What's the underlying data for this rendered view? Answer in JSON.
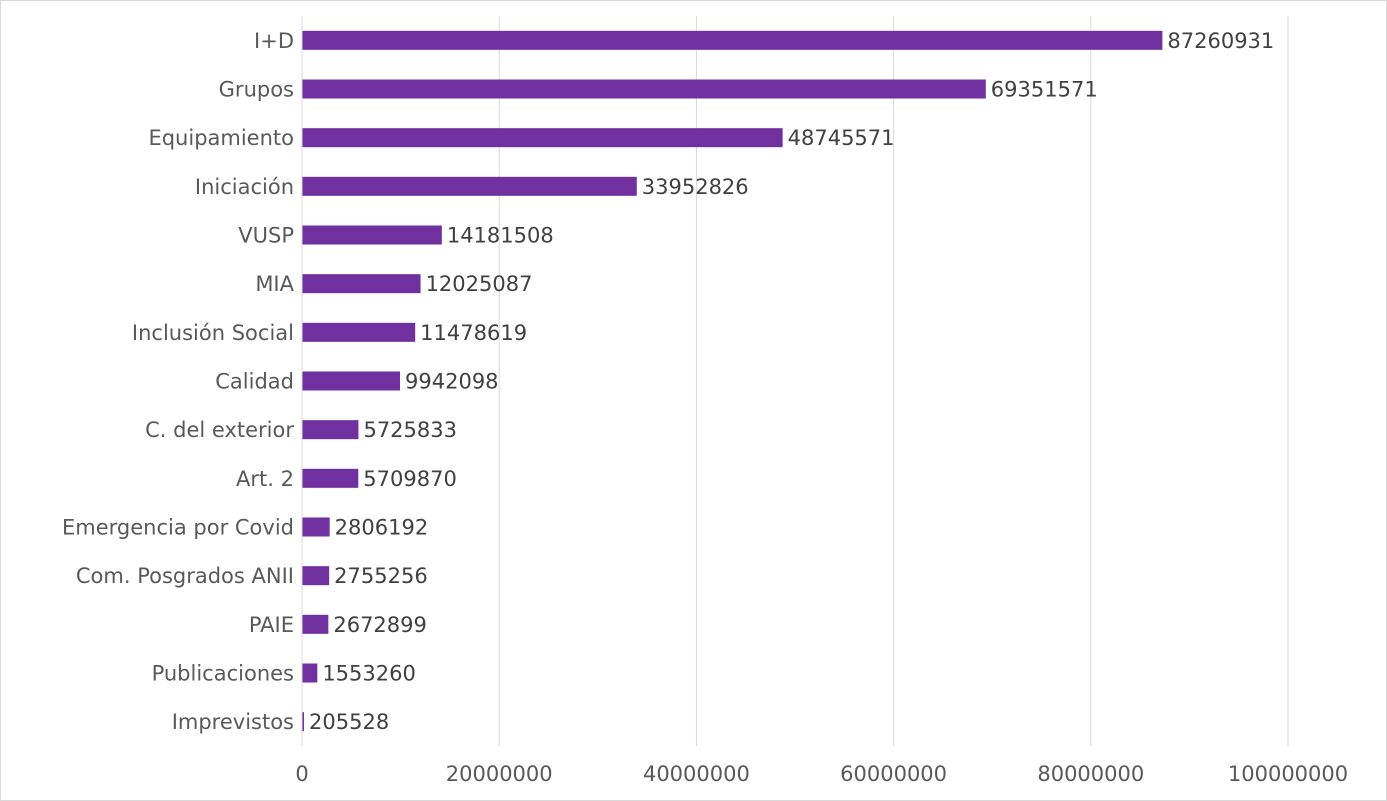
{
  "chart_data": {
    "type": "bar",
    "orientation": "horizontal",
    "title": "",
    "xlabel": "",
    "ylabel": "",
    "categories": [
      "I+D",
      "Grupos",
      "Equipamiento",
      "Iniciación",
      "VUSP",
      "MIA",
      "Inclusión Social",
      "Calidad",
      "C. del exterior",
      "Art. 2",
      "Emergencia por Covid",
      "Com. Posgrados ANII",
      "PAIE",
      "Publicaciones",
      "Imprevistos"
    ],
    "values": [
      87260931,
      69351571,
      48745571,
      33952826,
      14181508,
      12025087,
      11478619,
      9942098,
      5725833,
      5709870,
      2806192,
      2755256,
      2672899,
      1553260,
      205528
    ],
    "value_labels": [
      "87260931",
      "69351571",
      "48745571",
      "33952826",
      "14181508",
      "12025087",
      "11478619",
      "9942098",
      "5725833",
      "5709870",
      "2806192",
      "2755256",
      "2672899",
      "1553260",
      "205528"
    ],
    "xlim": [
      0,
      100000000
    ],
    "x_ticks": [
      0,
      20000000,
      40000000,
      60000000,
      80000000,
      100000000
    ],
    "x_tick_labels": [
      "0",
      "20000000",
      "40000000",
      "60000000",
      "80000000",
      "100000000"
    ],
    "grid": "vertical",
    "legend": "none",
    "bar_color": "#7030a0",
    "gridline_color": "#d9d9d9"
  }
}
